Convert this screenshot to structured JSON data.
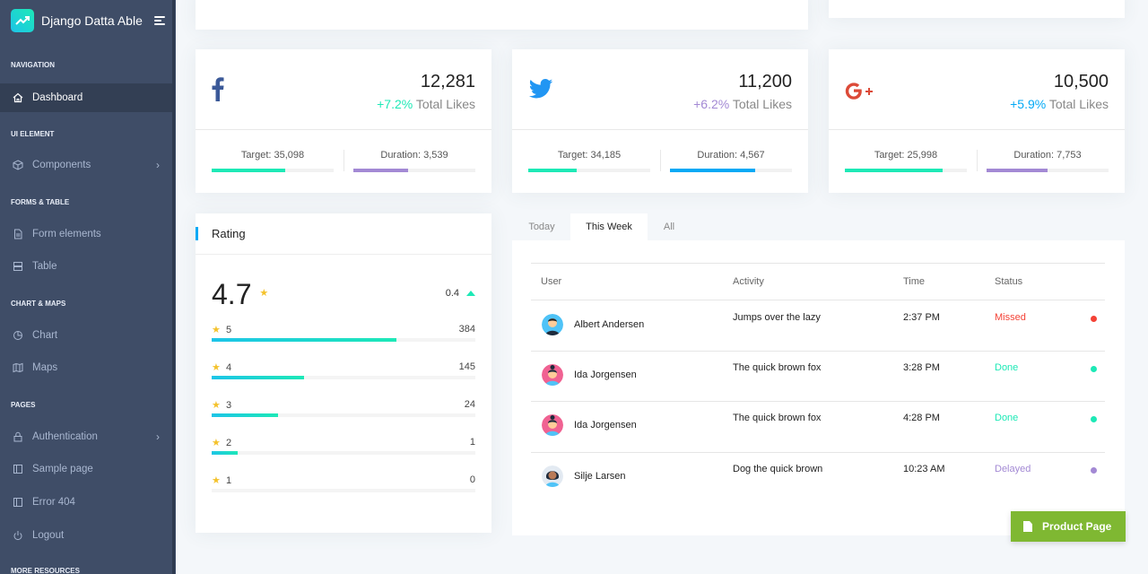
{
  "brand": {
    "name": "Django Datta Able"
  },
  "nav": {
    "navigation": "NAVIGATION",
    "dashboard": "Dashboard",
    "ui_element": "UI ELEMENT",
    "components": "Components",
    "forms_table": "FORMS & TABLE",
    "form_elements": "Form elements",
    "table": "Table",
    "chart_maps": "CHART & MAPS",
    "chart": "Chart",
    "maps": "Maps",
    "pages": "PAGES",
    "authentication": "Authentication",
    "sample_page": "Sample page",
    "error_404": "Error 404",
    "logout": "Logout",
    "more_resources": "MORE RESOURCES"
  },
  "stats": [
    {
      "network": "facebook",
      "value": "12,281",
      "change": "+7.2%",
      "change_color": "#1de9b6",
      "caption": "Total Likes",
      "target_label": "Target:",
      "target": "35,098",
      "target_fill": 0.6,
      "target_color": "#1de9b6",
      "duration_label": "Duration:",
      "duration": "3,539",
      "duration_fill": 0.45,
      "duration_color": "#a389d4"
    },
    {
      "network": "twitter",
      "value": "11,200",
      "change": "+6.2%",
      "change_color": "#a389d4",
      "caption": "Total Likes",
      "target_label": "Target:",
      "target": "34,185",
      "target_fill": 0.4,
      "target_color": "#1de9b6",
      "duration_label": "Duration:",
      "duration": "4,567",
      "duration_fill": 0.7,
      "duration_color": "#04a9f5"
    },
    {
      "network": "google-plus",
      "value": "10,500",
      "change": "+5.9%",
      "change_color": "#04a9f5",
      "caption": "Total Likes",
      "target_label": "Target:",
      "target": "25,998",
      "target_fill": 0.8,
      "target_color": "#1de9b6",
      "duration_label": "Duration:",
      "duration": "7,753",
      "duration_fill": 0.5,
      "duration_color": "#a389d4"
    }
  ],
  "rating": {
    "title": "Rating",
    "average": "4.7",
    "delta": "0.4",
    "rows": [
      {
        "stars": "5",
        "count": "384",
        "fill": 0.7
      },
      {
        "stars": "4",
        "count": "145",
        "fill": 0.35
      },
      {
        "stars": "3",
        "count": "24",
        "fill": 0.25
      },
      {
        "stars": "2",
        "count": "1",
        "fill": 0.1
      },
      {
        "stars": "1",
        "count": "0",
        "fill": 0
      }
    ]
  },
  "tabs": [
    "Today",
    "This Week",
    "All"
  ],
  "activity": {
    "headers": {
      "user": "User",
      "activity": "Activity",
      "time": "Time",
      "status": "Status"
    },
    "rows": [
      {
        "user": "Albert Andersen",
        "activity": "Jumps over the lazy",
        "time": "2:37 PM",
        "status": "Missed",
        "status_color": "#f44236",
        "avatar": "avatar-male-1"
      },
      {
        "user": "Ida Jorgensen",
        "activity": "The quick brown fox",
        "time": "3:28 PM",
        "status": "Done",
        "status_color": "#1de9b6",
        "avatar": "avatar-female-1"
      },
      {
        "user": "Ida Jorgensen",
        "activity": "The quick brown fox",
        "time": "4:28 PM",
        "status": "Done",
        "status_color": "#1de9b6",
        "avatar": "avatar-female-2"
      },
      {
        "user": "Silje Larsen",
        "activity": "Dog the quick brown",
        "time": "10:23 AM",
        "status": "Delayed",
        "status_color": "#a389d4",
        "avatar": "avatar-female-3"
      }
    ]
  },
  "product_button": "Product Page"
}
